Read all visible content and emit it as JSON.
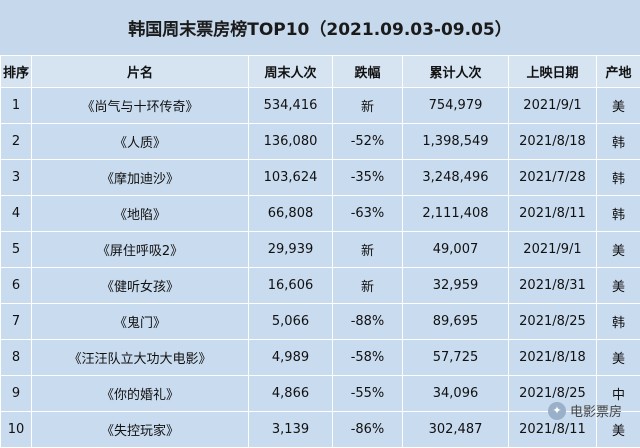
{
  "title": "韩国周末票房榜TOP10（2021.09.03-09.05）",
  "columns": [
    "排序",
    "片名",
    "周末人次",
    "跌幅",
    "累计人次",
    "上映日期",
    "产地"
  ],
  "rows": [
    {
      "rank": "1",
      "name": "《尚气与十环传奇》",
      "weekend": "534,416",
      "change": "新",
      "total": "754,979",
      "release": "2021/9/1",
      "origin": "美"
    },
    {
      "rank": "2",
      "name": "《人质》",
      "weekend": "136,080",
      "change": "-52%",
      "total": "1,398,549",
      "release": "2021/8/18",
      "origin": "韩"
    },
    {
      "rank": "3",
      "name": "《摩加迪沙》",
      "weekend": "103,624",
      "change": "-35%",
      "total": "3,248,496",
      "release": "2021/7/28",
      "origin": "韩"
    },
    {
      "rank": "4",
      "name": "《地陷》",
      "weekend": "66,808",
      "change": "-63%",
      "total": "2,111,408",
      "release": "2021/8/11",
      "origin": "韩"
    },
    {
      "rank": "5",
      "name": "《屏住呼吸2》",
      "weekend": "29,939",
      "change": "新",
      "total": "49,007",
      "release": "2021/9/1",
      "origin": "美"
    },
    {
      "rank": "6",
      "name": "《健听女孩》",
      "weekend": "16,606",
      "change": "新",
      "total": "32,959",
      "release": "2021/8/31",
      "origin": "美"
    },
    {
      "rank": "7",
      "name": "《鬼门》",
      "weekend": "5,066",
      "change": "-88%",
      "total": "89,695",
      "release": "2021/8/25",
      "origin": "韩"
    },
    {
      "rank": "8",
      "name": "《汪汪队立大功大电影》",
      "weekend": "4,989",
      "change": "-58%",
      "total": "57,725",
      "release": "2021/8/18",
      "origin": "美"
    },
    {
      "rank": "9",
      "name": "《你的婚礼》",
      "weekend": "4,866",
      "change": "-55%",
      "total": "34,096",
      "release": "2021/8/25",
      "origin": "中"
    },
    {
      "rank": "10",
      "name": "《失控玩家》",
      "weekend": "3,139",
      "change": "-86%",
      "total": "302,487",
      "release": "2021/8/11",
      "origin": "美"
    }
  ],
  "watermark": "电影票房",
  "colors": {
    "background": "#c9dbee",
    "header": "#d6e4f2",
    "grid": "#ffffff"
  }
}
